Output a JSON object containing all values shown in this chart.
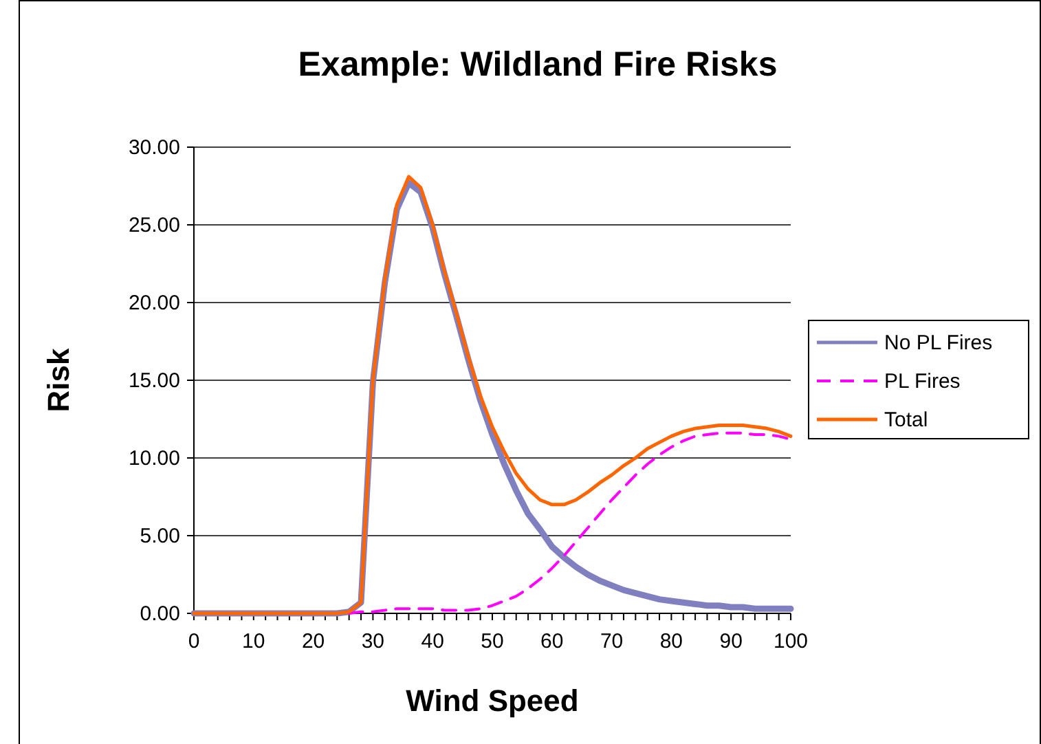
{
  "chart_data": {
    "type": "line",
    "title": "Example: Wildland Fire Risks",
    "xlabel": "Wind Speed",
    "ylabel": "Risk",
    "x": [
      0,
      2,
      4,
      6,
      8,
      10,
      12,
      14,
      16,
      18,
      20,
      22,
      24,
      26,
      28,
      30,
      32,
      34,
      36,
      38,
      40,
      42,
      44,
      46,
      48,
      50,
      52,
      54,
      56,
      58,
      60,
      62,
      64,
      66,
      68,
      70,
      72,
      74,
      76,
      78,
      80,
      82,
      84,
      86,
      88,
      90,
      92,
      94,
      96,
      98,
      100
    ],
    "series": [
      {
        "name": "No PL Fires",
        "color": "#8080c0",
        "line_style": "solid",
        "values": [
          0,
          0,
          0,
          0,
          0,
          0,
          0,
          0,
          0,
          0,
          0,
          0,
          0,
          0.1,
          0.7,
          14.9,
          21.3,
          26,
          27.7,
          27.1,
          24.8,
          21.8,
          19.1,
          16.3,
          13.7,
          11.5,
          9.6,
          7.9,
          6.4,
          5.4,
          4.3,
          3.6,
          3,
          2.5,
          2.1,
          1.8,
          1.5,
          1.3,
          1.1,
          0.9,
          0.8,
          0.7,
          0.6,
          0.5,
          0.5,
          0.4,
          0.4,
          0.3,
          0.3,
          0.3,
          0.3
        ]
      },
      {
        "name": "PL Fires",
        "color": "#ff00ff",
        "line_style": "dashed",
        "values": [
          null,
          null,
          null,
          null,
          null,
          null,
          null,
          null,
          null,
          null,
          null,
          null,
          null,
          0,
          0.1,
          0.1,
          0.2,
          0.3,
          0.3,
          0.3,
          0.3,
          0.2,
          0.2,
          0.2,
          0.3,
          0.5,
          0.8,
          1.1,
          1.6,
          2.2,
          2.9,
          3.7,
          4.6,
          5.5,
          6.4,
          7.3,
          8.1,
          8.9,
          9.6,
          10.2,
          10.7,
          11.1,
          11.4,
          11.5,
          11.6,
          11.6,
          11.6,
          11.5,
          11.5,
          11.4,
          11.2
        ]
      },
      {
        "name": "Total",
        "color": "#ff6600",
        "line_style": "solid",
        "values": [
          0,
          0,
          0,
          0,
          0,
          0,
          0,
          0,
          0,
          0,
          0,
          0,
          0,
          0.1,
          0.7,
          15,
          21.5,
          26.3,
          28.1,
          27.4,
          25,
          22,
          19.3,
          16.5,
          14,
          12,
          10.4,
          9,
          8,
          7.3,
          7,
          7,
          7.3,
          7.8,
          8.4,
          8.9,
          9.5,
          10,
          10.6,
          11,
          11.4,
          11.7,
          11.9,
          12,
          12.1,
          12.1,
          12.1,
          12,
          11.9,
          11.7,
          11.4
        ]
      }
    ],
    "xlim": [
      0,
      100
    ],
    "xticks": [
      0,
      {
        "value": 2,
        "label": null
      },
      {
        "value": 4,
        "label": null
      },
      {
        "value": 6,
        "label": null
      },
      {
        "value": 8,
        "label": null
      },
      10,
      {
        "value": 12,
        "label": null
      },
      {
        "value": 14,
        "label": null
      },
      {
        "value": 16,
        "label": null
      },
      {
        "value": 18,
        "label": null
      },
      20,
      {
        "value": 22,
        "label": null
      },
      {
        "value": 24,
        "label": null
      },
      {
        "value": 26,
        "label": null
      },
      {
        "value": 28,
        "label": null
      },
      30,
      {
        "value": 32,
        "label": null
      },
      {
        "value": 34,
        "label": null
      },
      {
        "value": 36,
        "label": null
      },
      {
        "value": 38,
        "label": null
      },
      40,
      {
        "value": 42,
        "label": null
      },
      {
        "value": 44,
        "label": null
      },
      {
        "value": 46,
        "label": null
      },
      {
        "value": 48,
        "label": null
      },
      50,
      {
        "value": 52,
        "label": null
      },
      {
        "value": 54,
        "label": null
      },
      {
        "value": 56,
        "label": null
      },
      {
        "value": 58,
        "label": null
      },
      60,
      {
        "value": 62,
        "label": null
      },
      {
        "value": 64,
        "label": null
      },
      {
        "value": 66,
        "label": null
      },
      {
        "value": 68,
        "label": null
      },
      70,
      {
        "value": 72,
        "label": null
      },
      {
        "value": 74,
        "label": null
      },
      {
        "value": 76,
        "label": null
      },
      {
        "value": 78,
        "label": null
      },
      80,
      {
        "value": 82,
        "label": null
      },
      {
        "value": 84,
        "label": null
      },
      {
        "value": 86,
        "label": null
      },
      {
        "value": 88,
        "label": null
      },
      90,
      {
        "value": 92,
        "label": null
      },
      {
        "value": 94,
        "label": null
      },
      {
        "value": 96,
        "label": null
      },
      {
        "value": 98,
        "label": null
      },
      100
    ],
    "ylim": [
      0,
      30
    ],
    "yticks": [
      {
        "value": 0,
        "label": "0.00"
      },
      {
        "value": 5,
        "label": "5.00"
      },
      {
        "value": 10,
        "label": "10.00"
      },
      {
        "value": 15,
        "label": "15.00"
      },
      {
        "value": 20,
        "label": "20.00"
      },
      {
        "value": 25,
        "label": "25.00"
      },
      {
        "value": 30,
        "label": "30.00"
      }
    ],
    "grid": "y",
    "legend": "right"
  }
}
